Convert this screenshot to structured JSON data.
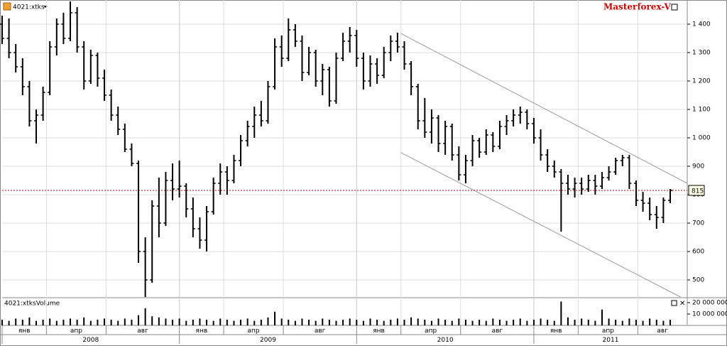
{
  "chart_data": {
    "type": "ohlc",
    "title": "4021:xtks",
    "brand": "Masterforex-V",
    "volume_title": "4021:xtksVolume",
    "last_price": 815,
    "xlim": [
      0,
      201
    ],
    "xticks": [
      {
        "value": 0,
        "label": "янв"
      },
      {
        "value": 13,
        "label": "апр"
      },
      {
        "value": 30.5,
        "label": "авг"
      },
      {
        "value": 52,
        "label": "янв"
      },
      {
        "value": 65,
        "label": "апр"
      },
      {
        "value": 82.5,
        "label": "авг"
      },
      {
        "value": 104,
        "label": "янв"
      },
      {
        "value": 117,
        "label": "апр"
      },
      {
        "value": 134.5,
        "label": "авг"
      },
      {
        "value": 156,
        "label": "янв"
      },
      {
        "value": 169,
        "label": "апр"
      },
      {
        "value": 186.5,
        "label": "авг"
      }
    ],
    "years": [
      {
        "value": 0,
        "label": "2008"
      },
      {
        "value": 52,
        "label": "2009"
      },
      {
        "value": 104,
        "label": "2010"
      },
      {
        "value": 156,
        "label": "2011"
      }
    ],
    "ylim": [
      440,
      1485
    ],
    "yticks": [
      500,
      600,
      700,
      800,
      900,
      {
        "value": 1000,
        "label": "1 000"
      },
      {
        "value": 1100,
        "label": "1 100"
      },
      {
        "value": 1200,
        "label": "1 200"
      },
      {
        "value": 1300,
        "label": "1 300"
      },
      {
        "value": 1400,
        "label": "1 400"
      }
    ],
    "volume_lim": [
      0,
      23750000
    ],
    "volume_ticks": [
      {
        "value": 10000000,
        "label": "10 000 000"
      },
      {
        "value": 20000000,
        "label": "20 000 000"
      }
    ],
    "grid": true,
    "color": "#000000",
    "last_price_color": "#cc0000",
    "trendlines": [
      {
        "x": [
          117,
          201
        ],
        "y": [
          1367,
          840
        ]
      },
      {
        "x": [
          117,
          199
        ],
        "y": [
          948,
          440
        ]
      }
    ],
    "x": [
      0,
      2,
      4,
      6,
      8,
      10,
      12,
      14,
      16,
      18,
      20,
      22,
      24,
      26,
      28,
      30,
      32,
      34,
      36,
      38,
      40,
      42,
      44,
      46,
      48,
      50,
      52,
      54,
      56,
      58,
      60,
      62,
      64,
      66,
      68,
      70,
      72,
      74,
      76,
      78,
      80,
      82,
      84,
      86,
      88,
      90,
      92,
      94,
      96,
      98,
      100,
      102,
      104,
      106,
      108,
      110,
      112,
      114,
      116,
      118,
      120,
      122,
      124,
      126,
      128,
      130,
      132,
      134,
      136,
      138,
      140,
      142,
      144,
      146,
      148,
      150,
      152,
      154,
      156,
      158,
      160,
      162,
      164,
      166,
      168,
      170,
      172,
      174,
      176,
      178,
      180,
      182,
      184,
      186,
      188,
      190,
      192,
      194,
      196
    ],
    "open": [
      1400,
      1350,
      1300,
      1250,
      1180,
      1060,
      1080,
      1160,
      1320,
      1400,
      1350,
      1440,
      1320,
      1200,
      1290,
      1210,
      1150,
      1080,
      1030,
      960,
      910,
      600,
      500,
      760,
      700,
      850,
      820,
      830,
      750,
      680,
      640,
      740,
      840,
      880,
      850,
      920,
      990,
      1040,
      1080,
      1060,
      1180,
      1320,
      1280,
      1380,
      1340,
      1230,
      1300,
      1200,
      1240,
      1130,
      1280,
      1340,
      1360,
      1280,
      1200,
      1260,
      1220,
      1300,
      1340,
      1320,
      1260,
      1180,
      1060,
      1020,
      1070,
      980,
      1040,
      940,
      870,
      920,
      990,
      950,
      1010,
      970,
      1040,
      1060,
      1080,
      1090,
      1050,
      1000,
      940,
      900,
      880,
      840,
      820,
      840,
      820,
      850,
      830,
      860,
      880,
      920,
      930,
      840,
      780,
      770,
      730,
      720,
      780
    ],
    "high": [
      1430,
      1420,
      1330,
      1280,
      1200,
      1100,
      1180,
      1340,
      1420,
      1440,
      1480,
      1460,
      1340,
      1310,
      1300,
      1240,
      1170,
      1110,
      1050,
      980,
      920,
      650,
      780,
      860,
      880,
      910,
      920,
      840,
      790,
      720,
      760,
      860,
      910,
      900,
      940,
      1010,
      1060,
      1110,
      1130,
      1200,
      1350,
      1360,
      1420,
      1400,
      1360,
      1320,
      1310,
      1260,
      1250,
      1300,
      1370,
      1390,
      1380,
      1300,
      1290,
      1280,
      1320,
      1360,
      1370,
      1340,
      1270,
      1190,
      1140,
      1100,
      1080,
      1060,
      1050,
      970,
      940,
      1010,
      1000,
      1030,
      1020,
      1060,
      1080,
      1100,
      1110,
      1100,
      1070,
      1030,
      960,
      920,
      890,
      870,
      860,
      860,
      870,
      870,
      880,
      900,
      930,
      940,
      940,
      850,
      810,
      790,
      760,
      790,
      820
    ],
    "low": [
      1330,
      1280,
      1230,
      1150,
      1040,
      980,
      1060,
      1150,
      1290,
      1330,
      1340,
      1300,
      1170,
      1190,
      1180,
      1130,
      1060,
      1010,
      950,
      900,
      560,
      440,
      490,
      650,
      690,
      780,
      790,
      720,
      650,
      610,
      600,
      730,
      800,
      800,
      840,
      900,
      970,
      1000,
      1040,
      1050,
      1170,
      1250,
      1270,
      1320,
      1200,
      1220,
      1180,
      1150,
      1110,
      1120,
      1270,
      1300,
      1250,
      1170,
      1180,
      1190,
      1210,
      1270,
      1300,
      1240,
      1150,
      1030,
      1000,
      980,
      950,
      940,
      920,
      850,
      840,
      900,
      930,
      940,
      950,
      960,
      1010,
      1040,
      1050,
      1030,
      980,
      920,
      880,
      860,
      670,
      800,
      790,
      800,
      810,
      800,
      820,
      850,
      870,
      900,
      820,
      760,
      740,
      710,
      680,
      700,
      770
    ],
    "close": [
      1350,
      1300,
      1250,
      1180,
      1060,
      1080,
      1160,
      1320,
      1400,
      1350,
      1440,
      1320,
      1200,
      1290,
      1210,
      1150,
      1080,
      1030,
      960,
      910,
      600,
      500,
      760,
      700,
      850,
      820,
      830,
      750,
      680,
      640,
      740,
      840,
      880,
      850,
      920,
      990,
      1040,
      1080,
      1060,
      1180,
      1320,
      1280,
      1380,
      1340,
      1230,
      1300,
      1200,
      1240,
      1130,
      1280,
      1340,
      1360,
      1280,
      1200,
      1260,
      1220,
      1300,
      1340,
      1320,
      1260,
      1180,
      1060,
      1020,
      1070,
      980,
      1040,
      940,
      870,
      920,
      990,
      950,
      1010,
      970,
      1040,
      1060,
      1080,
      1090,
      1050,
      1000,
      940,
      900,
      880,
      840,
      820,
      840,
      820,
      850,
      830,
      860,
      880,
      920,
      930,
      840,
      780,
      770,
      730,
      720,
      780,
      815
    ],
    "volume": [
      5000000,
      4000000,
      6000000,
      5000000,
      7000000,
      4000000,
      5000000,
      6000000,
      4000000,
      5000000,
      6000000,
      5000000,
      7000000,
      4000000,
      5000000,
      6000000,
      5000000,
      4000000,
      6000000,
      5000000,
      9000000,
      15000000,
      8000000,
      7000000,
      6000000,
      5000000,
      6000000,
      4000000,
      5000000,
      6000000,
      5000000,
      4000000,
      6000000,
      5000000,
      4000000,
      5000000,
      6000000,
      4000000,
      5000000,
      7000000,
      12000000,
      6000000,
      5000000,
      4000000,
      6000000,
      5000000,
      4000000,
      6000000,
      5000000,
      4000000,
      5000000,
      6000000,
      5000000,
      4000000,
      6000000,
      5000000,
      4000000,
      5000000,
      6000000,
      5000000,
      7000000,
      6000000,
      5000000,
      4000000,
      6000000,
      5000000,
      4000000,
      6000000,
      5000000,
      4000000,
      5000000,
      4000000,
      6000000,
      5000000,
      4000000,
      5000000,
      6000000,
      4000000,
      5000000,
      6000000,
      5000000,
      4000000,
      21000000,
      7000000,
      5000000,
      6000000,
      5000000,
      4000000,
      14000000,
      6000000,
      5000000,
      4000000,
      6000000,
      5000000,
      4000000,
      6000000,
      5000000,
      4000000,
      5000000
    ]
  }
}
